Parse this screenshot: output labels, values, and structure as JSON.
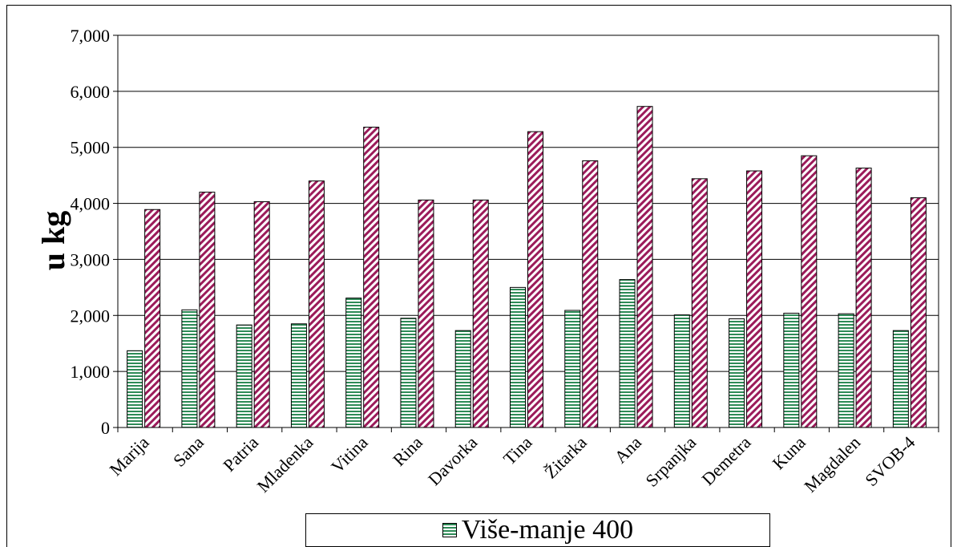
{
  "chart_data": {
    "type": "bar",
    "title": "",
    "xlabel": "",
    "ylabel": "u kg",
    "ylim": [
      0,
      7000
    ],
    "yticks": [
      "0",
      "1,000",
      "2,000",
      "3,000",
      "4,000",
      "5,000",
      "6,000",
      "7,000"
    ],
    "grid": true,
    "legend_position": "bottom",
    "categories": [
      "Marija",
      "Sana",
      "Patria",
      "Mladenka",
      "Vitina",
      "Rina",
      "Davorka",
      "Tina",
      "Žitarka",
      "Ana",
      "Srpanjka",
      "Demetra",
      "Kuna",
      "Magdalen",
      "SVOB-4"
    ],
    "series": [
      {
        "name": "Više-manje 400",
        "color": "#2e8b57",
        "pattern": "horizontal-stripes",
        "values": [
          1370,
          2100,
          1830,
          1850,
          2310,
          1950,
          1730,
          2500,
          2090,
          2640,
          2010,
          1940,
          2040,
          2030,
          1730
        ]
      },
      {
        "name": "",
        "color": "#9b1b5a",
        "pattern": "diagonal-stripes",
        "values": [
          3890,
          4200,
          4030,
          4400,
          5360,
          4060,
          4060,
          5280,
          4760,
          5730,
          4440,
          4580,
          4850,
          4630,
          4100
        ]
      }
    ]
  }
}
